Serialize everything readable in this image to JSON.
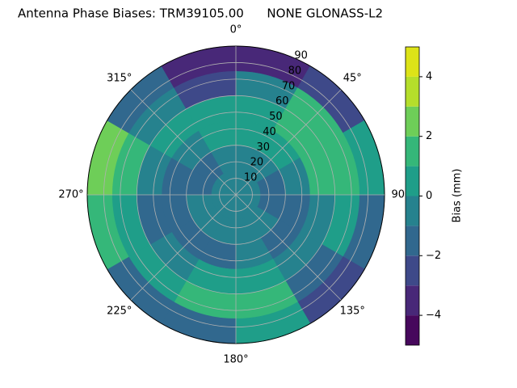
{
  "chart_data": {
    "type": "polar_contour",
    "title": "Antenna Phase Biases: TRM39105.00      NONE GLONASS-L2",
    "colorbar_label": "Bias (mm)",
    "azimuth_edges": [
      0,
      30,
      60,
      90,
      120,
      150,
      180,
      210,
      240,
      270,
      300,
      330,
      360
    ],
    "zenith_edges": [
      0,
      15,
      30,
      45,
      60,
      75,
      90
    ],
    "values": [
      [
        -0.5,
        -0.5,
        -1,
        -1,
        -0.5,
        -0.5,
        -0.5,
        -0.5,
        -0.5,
        -0.5,
        -0.5,
        -0.5
      ],
      [
        -0.5,
        -0.5,
        -1.5,
        -1.5,
        -1,
        -0.5,
        -0.5,
        -0.5,
        -1,
        -1.5,
        -1.5,
        -1
      ],
      [
        0.5,
        0.5,
        -0.5,
        -1.5,
        -1.5,
        -1,
        -1.5,
        -1.5,
        -1.5,
        -1.5,
        -1,
        0.5
      ],
      [
        0.5,
        1.5,
        1.5,
        -0.5,
        -0.5,
        0.5,
        0.5,
        -0.5,
        -1.5,
        -0.5,
        0.5,
        0.5
      ],
      [
        -0.5,
        1.5,
        1.5,
        0.5,
        -1.5,
        1.5,
        1.5,
        0.5,
        0.5,
        1.5,
        -0.5,
        -2.5
      ],
      [
        -3.5,
        -2.5,
        0.5,
        -1.5,
        -2.5,
        0.5,
        -1.5,
        -1.5,
        1.5,
        2.5,
        -1.5,
        -3.5
      ]
    ],
    "levels": [
      -5,
      -4,
      -3,
      -2,
      -1,
      0,
      1,
      2,
      3,
      4,
      5
    ],
    "colors": [
      "#46085c",
      "#482878",
      "#3e4989",
      "#31688e",
      "#26828e",
      "#1f9e89",
      "#35b779",
      "#6ece58",
      "#b5de2b",
      "#dde318"
    ],
    "rlim": [
      0,
      90
    ],
    "rticks": [
      10,
      20,
      30,
      40,
      50,
      60,
      70,
      80,
      90
    ],
    "thetaticks": [
      {
        "value": 0,
        "label": "0°"
      },
      {
        "value": 45,
        "label": "45°"
      },
      {
        "value": 90,
        "label": "90°"
      },
      {
        "value": 135,
        "label": "135°"
      },
      {
        "value": 180,
        "label": "180°"
      },
      {
        "value": 225,
        "label": "225°"
      },
      {
        "value": 270,
        "label": "270°"
      },
      {
        "value": 315,
        "label": "315°"
      }
    ],
    "clim": [
      -5,
      5
    ],
    "cticks": [
      {
        "value": -4,
        "label": "−4"
      },
      {
        "value": -2,
        "label": "−2"
      },
      {
        "value": 0,
        "label": "0"
      },
      {
        "value": 2,
        "label": "2"
      },
      {
        "value": 4,
        "label": "4"
      }
    ],
    "grid": true
  }
}
